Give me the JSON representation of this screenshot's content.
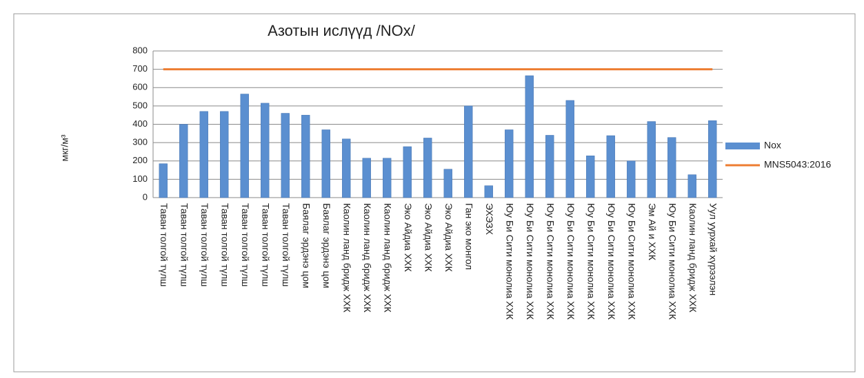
{
  "chart_data": {
    "type": "bar",
    "title": "Азотын ислүүд /NOx/",
    "y_label": "мкг/м³",
    "categories": [
      "Таван толгой түлш",
      "Таван толгой түлш",
      "Таван толгой түлш",
      "Таван толгой түлш",
      "Таван толгой түлш",
      "Таван толгой түлш",
      "Таван толгой түлш",
      "Баялаг эрдэнэ цом",
      "Баялаг эрдэнэ цом",
      "Каолин ланд бридж ХХК",
      "Каолин ланд бридж ХХК",
      "Каолин ланд бридж ХХК",
      "Эко Айдиа ХХК",
      "Эко Айдиа ХХК",
      "Эко Айдиа ХХК",
      "Ган эко монгол",
      "ЭХЭЗХ",
      "Юу Би Сити монолиа ХХК",
      "Юу Би Сити монолиа ХХК",
      "Юу Би Сити монолиа ХХК",
      "Юу Би Сити монолиа ХХК",
      "Юу Би Сити монолиа ХХК",
      "Юу Би Сити монолиа ХХК",
      "Юу Би Сити монолиа ХХК",
      "Эм Ай и ХХК",
      "Юу Би Сити монолиа ХХК",
      "Каолин ланд бридж ХХК",
      "Уул уурхай хүрээлэн"
    ],
    "series": [
      {
        "name": "Nox",
        "type": "bar",
        "color": "#5b8fd0",
        "values": [
          185,
          400,
          470,
          470,
          565,
          515,
          460,
          450,
          370,
          320,
          215,
          215,
          278,
          325,
          155,
          500,
          65,
          370,
          665,
          340,
          530,
          228,
          338,
          200,
          415,
          328,
          125,
          420
        ]
      },
      {
        "name": "MNS5043:2016",
        "type": "line",
        "color": "#ed7d31",
        "values": [
          700,
          700,
          700,
          700,
          700,
          700,
          700,
          700,
          700,
          700,
          700,
          700,
          700,
          700,
          700,
          700,
          700,
          700,
          700,
          700,
          700,
          700,
          700,
          700,
          700,
          700,
          700,
          700
        ]
      }
    ],
    "ylim": [
      0,
      800
    ],
    "yticks": [
      0,
      100,
      200,
      300,
      400,
      500,
      600,
      700,
      800
    ],
    "grid": true,
    "legend": "right"
  }
}
